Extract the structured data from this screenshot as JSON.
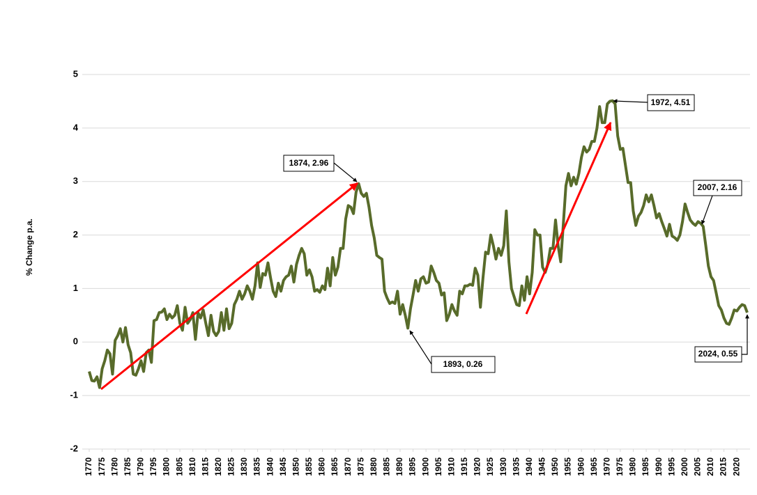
{
  "chart_data": {
    "type": "line",
    "y_label": "% Change p.a.",
    "color": "#586b2a",
    "grid": true,
    "xlim": [
      1770,
      2024
    ],
    "ylim": [
      -2,
      5
    ],
    "yticks": [
      -2,
      -1,
      0,
      1,
      2,
      3,
      4,
      5
    ],
    "xticks": [
      1770,
      1775,
      1780,
      1785,
      1790,
      1795,
      1800,
      1805,
      1810,
      1815,
      1820,
      1825,
      1830,
      1835,
      1840,
      1845,
      1850,
      1855,
      1860,
      1865,
      1870,
      1875,
      1880,
      1885,
      1890,
      1895,
      1900,
      1905,
      1910,
      1915,
      1920,
      1925,
      1930,
      1935,
      1940,
      1945,
      1950,
      1955,
      1960,
      1965,
      1970,
      1975,
      1980,
      1985,
      1990,
      1995,
      2000,
      2005,
      2010,
      2015,
      2020
    ],
    "annotations": [
      "1874, 2.96",
      "1893, 0.26",
      "1972, 4.51",
      "2007, 2.16",
      "2024, 0.55"
    ],
    "x": [
      1770,
      1771,
      1772,
      1773,
      1774,
      1775,
      1776,
      1777,
      1778,
      1779,
      1780,
      1781,
      1782,
      1783,
      1784,
      1785,
      1786,
      1787,
      1788,
      1789,
      1790,
      1791,
      1792,
      1793,
      1794,
      1795,
      1796,
      1797,
      1798,
      1799,
      1800,
      1801,
      1802,
      1803,
      1804,
      1805,
      1806,
      1807,
      1808,
      1809,
      1810,
      1811,
      1812,
      1813,
      1814,
      1815,
      1816,
      1817,
      1818,
      1819,
      1820,
      1821,
      1822,
      1823,
      1824,
      1825,
      1826,
      1827,
      1828,
      1829,
      1830,
      1831,
      1832,
      1833,
      1834,
      1835,
      1836,
      1837,
      1838,
      1839,
      1840,
      1841,
      1842,
      1843,
      1844,
      1845,
      1846,
      1847,
      1848,
      1849,
      1850,
      1851,
      1852,
      1853,
      1854,
      1855,
      1856,
      1857,
      1858,
      1859,
      1860,
      1861,
      1862,
      1863,
      1864,
      1865,
      1866,
      1867,
      1868,
      1869,
      1870,
      1871,
      1872,
      1873,
      1874,
      1875,
      1876,
      1877,
      1878,
      1879,
      1880,
      1881,
      1882,
      1883,
      1884,
      1885,
      1886,
      1887,
      1888,
      1889,
      1890,
      1891,
      1892,
      1893,
      1894,
      1895,
      1896,
      1897,
      1898,
      1899,
      1900,
      1901,
      1902,
      1903,
      1904,
      1905,
      1906,
      1907,
      1908,
      1909,
      1910,
      1911,
      1912,
      1913,
      1914,
      1915,
      1916,
      1917,
      1918,
      1919,
      1920,
      1921,
      1922,
      1923,
      1924,
      1925,
      1926,
      1927,
      1928,
      1929,
      1930,
      1931,
      1932,
      1933,
      1934,
      1935,
      1936,
      1937,
      1938,
      1939,
      1940,
      1941,
      1942,
      1943,
      1944,
      1945,
      1946,
      1947,
      1948,
      1949,
      1950,
      1951,
      1952,
      1953,
      1954,
      1955,
      1956,
      1957,
      1958,
      1959,
      1960,
      1961,
      1962,
      1963,
      1964,
      1965,
      1966,
      1967,
      1968,
      1969,
      1970,
      1971,
      1972,
      1973,
      1974,
      1975,
      1976,
      1977,
      1978,
      1979,
      1980,
      1981,
      1982,
      1983,
      1984,
      1985,
      1986,
      1987,
      1988,
      1989,
      1990,
      1991,
      1992,
      1993,
      1994,
      1995,
      1996,
      1997,
      1998,
      1999,
      2000,
      2001,
      2002,
      2003,
      2004,
      2005,
      2006,
      2007,
      2008,
      2009,
      2010,
      2011,
      2012,
      2013,
      2014,
      2015,
      2016,
      2017,
      2018,
      2019,
      2020,
      2021,
      2022,
      2023,
      2024
    ],
    "values": [
      -0.55,
      -0.72,
      -0.73,
      -0.65,
      -0.85,
      -0.5,
      -0.35,
      -0.15,
      -0.22,
      -0.6,
      0.03,
      0.12,
      0.25,
      0.0,
      0.27,
      -0.05,
      -0.2,
      -0.6,
      -0.62,
      -0.5,
      -0.35,
      -0.55,
      -0.2,
      -0.15,
      -0.38,
      0.4,
      0.42,
      0.55,
      0.56,
      0.62,
      0.42,
      0.52,
      0.45,
      0.5,
      0.68,
      0.35,
      0.22,
      0.65,
      0.35,
      0.42,
      0.55,
      0.05,
      0.55,
      0.45,
      0.6,
      0.35,
      0.12,
      0.5,
      0.2,
      0.12,
      0.2,
      0.55,
      0.22,
      0.62,
      0.25,
      0.35,
      0.7,
      0.8,
      0.95,
      0.8,
      0.9,
      1.05,
      0.95,
      0.8,
      1.05,
      1.48,
      1.02,
      1.28,
      1.25,
      1.48,
      1.2,
      0.95,
      0.85,
      1.1,
      0.95,
      1.15,
      1.22,
      1.25,
      1.42,
      1.12,
      1.45,
      1.62,
      1.75,
      1.65,
      1.25,
      1.35,
      1.22,
      0.95,
      0.98,
      0.93,
      1.05,
      0.98,
      1.38,
      1.05,
      1.58,
      1.25,
      1.4,
      1.75,
      1.75,
      2.3,
      2.55,
      2.52,
      2.4,
      2.8,
      2.96,
      2.78,
      2.72,
      2.78,
      2.52,
      2.18,
      1.95,
      1.62,
      1.58,
      1.55,
      0.95,
      0.82,
      0.72,
      0.75,
      0.72,
      0.95,
      0.52,
      0.7,
      0.5,
      0.26,
      0.62,
      0.88,
      1.15,
      0.95,
      1.18,
      1.22,
      1.1,
      1.12,
      1.42,
      1.3,
      1.15,
      1.1,
      0.88,
      0.92,
      0.4,
      0.52,
      0.7,
      0.58,
      0.5,
      0.95,
      0.9,
      1.05,
      1.05,
      1.08,
      1.06,
      1.38,
      1.25,
      0.65,
      1.2,
      1.68,
      1.65,
      2.0,
      1.8,
      1.55,
      1.75,
      1.62,
      1.8,
      2.45,
      1.5,
      1.0,
      0.85,
      0.7,
      0.68,
      1.05,
      0.78,
      1.22,
      0.9,
      1.3,
      2.1,
      2.0,
      2.0,
      1.4,
      1.3,
      1.45,
      1.75,
      1.75,
      2.28,
      1.8,
      1.5,
      2.2,
      2.92,
      3.15,
      2.92,
      3.08,
      2.95,
      3.15,
      3.45,
      3.65,
      3.55,
      3.6,
      3.75,
      3.75,
      4.0,
      4.4,
      4.1,
      4.1,
      4.45,
      4.5,
      4.51,
      4.45,
      3.85,
      3.6,
      3.62,
      3.3,
      2.98,
      2.98,
      2.45,
      2.18,
      2.35,
      2.42,
      2.55,
      2.75,
      2.62,
      2.75,
      2.55,
      2.32,
      2.4,
      2.25,
      2.12,
      1.98,
      2.2,
      1.98,
      1.95,
      1.9,
      2.0,
      2.25,
      2.58,
      2.42,
      2.28,
      2.22,
      2.18,
      2.25,
      2.22,
      2.16,
      1.8,
      1.42,
      1.22,
      1.15,
      0.92,
      0.68,
      0.6,
      0.45,
      0.35,
      0.33,
      0.45,
      0.6,
      0.58,
      0.65,
      0.7,
      0.68,
      0.55
    ]
  }
}
